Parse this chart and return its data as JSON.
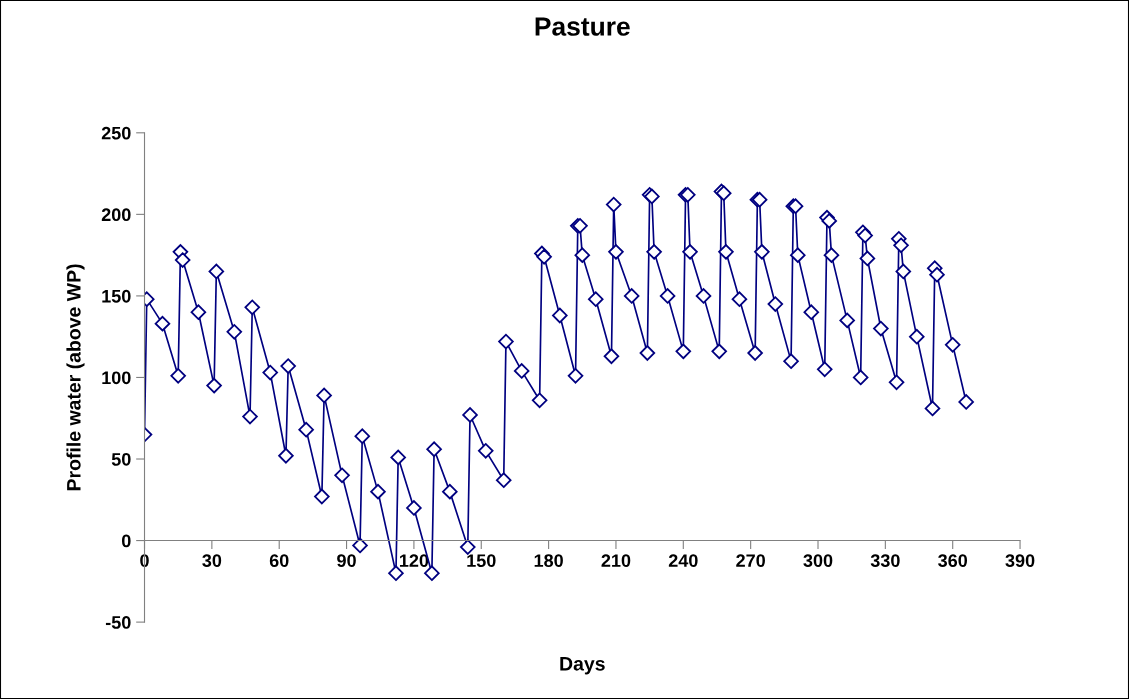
{
  "chart_data": {
    "type": "line",
    "title": "Pasture",
    "xlabel": "Days",
    "ylabel": "Profile water (above WP)",
    "xlim": [
      0,
      390
    ],
    "xticks": [
      0,
      30,
      60,
      90,
      120,
      150,
      180,
      210,
      240,
      270,
      300,
      330,
      360,
      390
    ],
    "ylim": [
      -50,
      250
    ],
    "yticks": [
      -50,
      0,
      50,
      100,
      150,
      200,
      250
    ],
    "grid": false,
    "marker": "diamond",
    "line_style": "solid",
    "series": [
      {
        "color": "#000080",
        "x": [
          0,
          1,
          8,
          15,
          16,
          17,
          24,
          31,
          32,
          40,
          47,
          48,
          56,
          63,
          64,
          72,
          79,
          80,
          88,
          96,
          97,
          104,
          112,
          113,
          120,
          128,
          129,
          136,
          144,
          145,
          152,
          160,
          161,
          168,
          176,
          177,
          178,
          185,
          192,
          193,
          194,
          195,
          201,
          208,
          209,
          210,
          217,
          224,
          225,
          226,
          227,
          233,
          240,
          241,
          242,
          243,
          249,
          256,
          257,
          258,
          259,
          265,
          272,
          273,
          274,
          275,
          281,
          288,
          289,
          290,
          291,
          297,
          303,
          304,
          305,
          306,
          313,
          319,
          320,
          321,
          322,
          328,
          335,
          336,
          337,
          338,
          344,
          351,
          352,
          353,
          360,
          366
        ],
        "values": [
          65,
          148,
          133,
          101,
          177,
          172,
          140,
          95,
          165,
          128,
          76,
          143,
          103,
          52,
          107,
          68,
          27,
          89,
          40,
          -3,
          64,
          30,
          -20,
          51,
          20,
          -20,
          56,
          30,
          -4,
          77,
          55,
          37,
          122,
          104,
          86,
          176,
          174,
          138,
          101,
          193,
          193,
          175,
          148,
          113,
          206,
          177,
          150,
          115,
          212,
          211,
          177,
          150,
          116,
          212,
          212,
          177,
          150,
          116,
          214,
          213,
          177,
          148,
          115,
          209,
          209,
          177,
          145,
          110,
          205,
          205,
          175,
          140,
          105,
          198,
          196,
          175,
          135,
          100,
          189,
          187,
          173,
          130,
          97,
          185,
          181,
          165,
          125,
          81,
          167,
          163,
          120,
          85
        ]
      }
    ]
  }
}
